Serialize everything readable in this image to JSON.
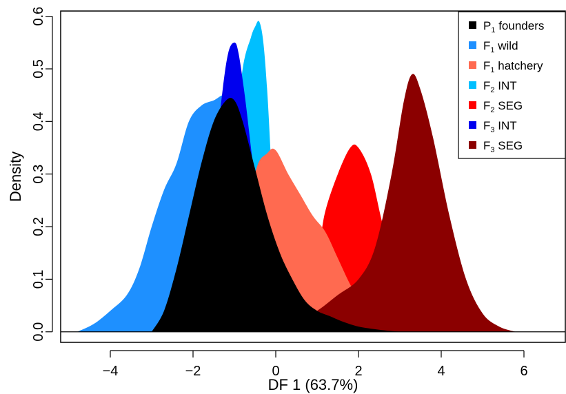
{
  "chart_data": {
    "type": "area",
    "xlabel": "DF 1 (63.7%)",
    "ylabel": "Density",
    "xlim": [
      -5.2,
      7.0
    ],
    "ylim": [
      -0.02,
      0.61
    ],
    "x_ticks": [
      -4,
      -2,
      0,
      2,
      4,
      6
    ],
    "x_tick_labels": [
      "−4",
      "−2",
      "0",
      "2",
      "4",
      "6"
    ],
    "y_ticks": [
      0.0,
      0.1,
      0.2,
      0.3,
      0.4,
      0.5,
      0.6
    ],
    "y_tick_labels": [
      "0.0",
      "0.1",
      "0.2",
      "0.3",
      "0.4",
      "0.5",
      "0.6"
    ],
    "baseline": 0,
    "grid": false,
    "legend_position": "top-right",
    "legend": [
      {
        "base": "P",
        "sub": "1",
        "rest": " founders",
        "color": "#000000"
      },
      {
        "base": "F",
        "sub": "1",
        "rest": " wild",
        "color": "#1e90ff"
      },
      {
        "base": "F",
        "sub": "1",
        "rest": " hatchery",
        "color": "#ff6a50"
      },
      {
        "base": "F",
        "sub": "2",
        "rest": " INT",
        "color": "#00bfff"
      },
      {
        "base": "F",
        "sub": "2",
        "rest": " SEG",
        "color": "#ff0000"
      },
      {
        "base": "F",
        "sub": "3",
        "rest": " INT",
        "color": "#0000ee"
      },
      {
        "base": "F",
        "sub": "3",
        "rest": " SEG",
        "color": "#8b0000"
      }
    ],
    "series": [
      {
        "name": "F1 wild",
        "color": "#1e90ff",
        "x": [
          -4.8,
          -4.4,
          -4.0,
          -3.6,
          -3.3,
          -3.0,
          -2.7,
          -2.4,
          -2.1,
          -1.8,
          -1.5,
          -1.2,
          -0.9,
          -0.6,
          -0.3,
          0.0,
          0.3,
          0.6,
          1.0,
          1.5,
          2.0
        ],
        "y": [
          0.0,
          0.015,
          0.04,
          0.07,
          0.12,
          0.2,
          0.27,
          0.32,
          0.4,
          0.43,
          0.44,
          0.45,
          0.42,
          0.35,
          0.25,
          0.17,
          0.1,
          0.05,
          0.02,
          0.005,
          0.0
        ]
      },
      {
        "name": "F2 INT",
        "color": "#00bfff",
        "x": [
          -1.6,
          -1.2,
          -1.0,
          -0.8,
          -0.6,
          -0.5,
          -0.4,
          -0.3,
          -0.2,
          -0.1,
          0.0,
          0.2,
          0.5
        ],
        "y": [
          0.0,
          0.1,
          0.35,
          0.5,
          0.56,
          0.58,
          0.59,
          0.55,
          0.45,
          0.3,
          0.15,
          0.05,
          0.0
        ]
      },
      {
        "name": "F3 INT",
        "color": "#0000ee",
        "x": [
          -2.2,
          -1.7,
          -1.5,
          -1.3,
          -1.15,
          -1.0,
          -0.9,
          -0.75,
          -0.6,
          -0.45,
          -0.3,
          -0.1,
          0.2
        ],
        "y": [
          0.0,
          0.12,
          0.3,
          0.45,
          0.53,
          0.55,
          0.53,
          0.45,
          0.35,
          0.25,
          0.12,
          0.04,
          0.0
        ]
      },
      {
        "name": "F2 SEG",
        "color": "#ff0000",
        "x": [
          0.0,
          0.5,
          1.0,
          1.2,
          1.5,
          1.8,
          2.0,
          2.3,
          2.6,
          3.0,
          3.5,
          4.0,
          4.5
        ],
        "y": [
          0.0,
          0.03,
          0.15,
          0.23,
          0.3,
          0.35,
          0.35,
          0.3,
          0.2,
          0.1,
          0.03,
          0.01,
          0.0
        ]
      },
      {
        "name": "F1 hatchery",
        "color": "#ff6a50",
        "x": [
          -1.2,
          -0.8,
          -0.5,
          -0.2,
          0.0,
          0.3,
          0.6,
          0.9,
          1.2,
          1.5,
          1.8,
          2.1,
          2.4,
          2.8
        ],
        "y": [
          0.0,
          0.12,
          0.3,
          0.34,
          0.345,
          0.3,
          0.26,
          0.22,
          0.19,
          0.14,
          0.09,
          0.05,
          0.02,
          0.0
        ]
      },
      {
        "name": "F3 SEG",
        "color": "#8b0000",
        "x": [
          -0.5,
          0.0,
          0.5,
          1.0,
          1.5,
          2.0,
          2.4,
          2.8,
          3.1,
          3.3,
          3.5,
          3.8,
          4.2,
          4.6,
          5.0,
          5.4,
          5.8
        ],
        "y": [
          0.0,
          0.005,
          0.02,
          0.04,
          0.07,
          0.1,
          0.16,
          0.3,
          0.44,
          0.49,
          0.46,
          0.37,
          0.22,
          0.1,
          0.035,
          0.01,
          0.0
        ]
      },
      {
        "name": "P1 founders",
        "color": "#000000",
        "x": [
          -3.0,
          -2.7,
          -2.4,
          -2.1,
          -1.8,
          -1.5,
          -1.2,
          -1.0,
          -0.8,
          -0.5,
          -0.2,
          0.1,
          0.4,
          0.7,
          1.0,
          1.3,
          1.6,
          2.0,
          2.5,
          3.0
        ],
        "y": [
          0.0,
          0.04,
          0.12,
          0.22,
          0.32,
          0.4,
          0.44,
          0.44,
          0.4,
          0.31,
          0.22,
          0.15,
          0.1,
          0.06,
          0.04,
          0.03,
          0.02,
          0.01,
          0.004,
          0.0
        ]
      }
    ]
  }
}
